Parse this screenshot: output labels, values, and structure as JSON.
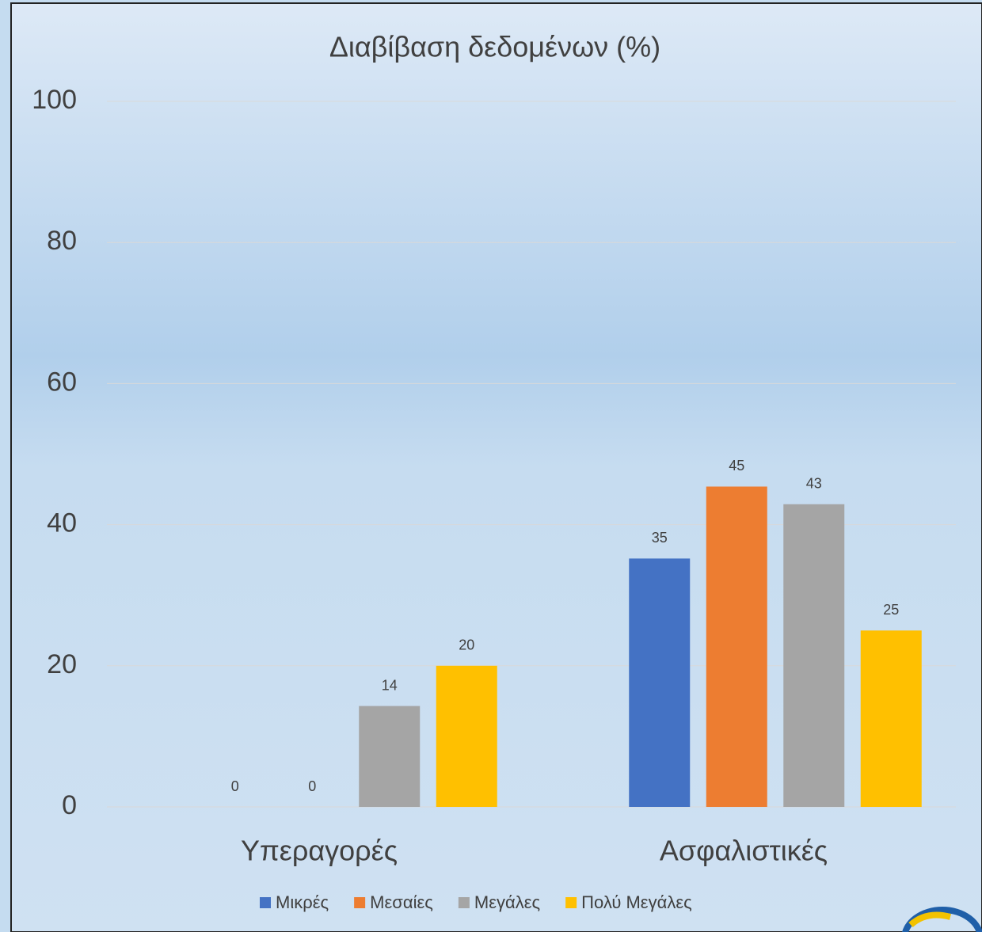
{
  "chart_data": {
    "type": "bar",
    "title": "Διαβίβαση δεδομένων (%)",
    "categories": [
      "Υπεραγορές",
      "Ασφαλιστικές"
    ],
    "series": [
      {
        "name": "Μικρές",
        "color": "#4472c4",
        "values": [
          0,
          35.2
        ],
        "value_labels": [
          "0",
          "35"
        ]
      },
      {
        "name": "Μεσαίες",
        "color": "#ed7d31",
        "values": [
          0,
          45.4
        ],
        "value_labels": [
          "0",
          "45"
        ]
      },
      {
        "name": "Μεγάλες",
        "color": "#a5a5a5",
        "values": [
          14.3,
          42.9
        ],
        "value_labels": [
          "14",
          "43"
        ]
      },
      {
        "name": "Πολύ Μεγάλες",
        "color": "#ffc000",
        "values": [
          20,
          25
        ],
        "value_labels": [
          "20",
          "25"
        ]
      }
    ],
    "ylim": [
      0,
      100
    ],
    "yticks": [
      0,
      20,
      40,
      60,
      80,
      100
    ],
    "grid": true,
    "legend": "bottom"
  }
}
